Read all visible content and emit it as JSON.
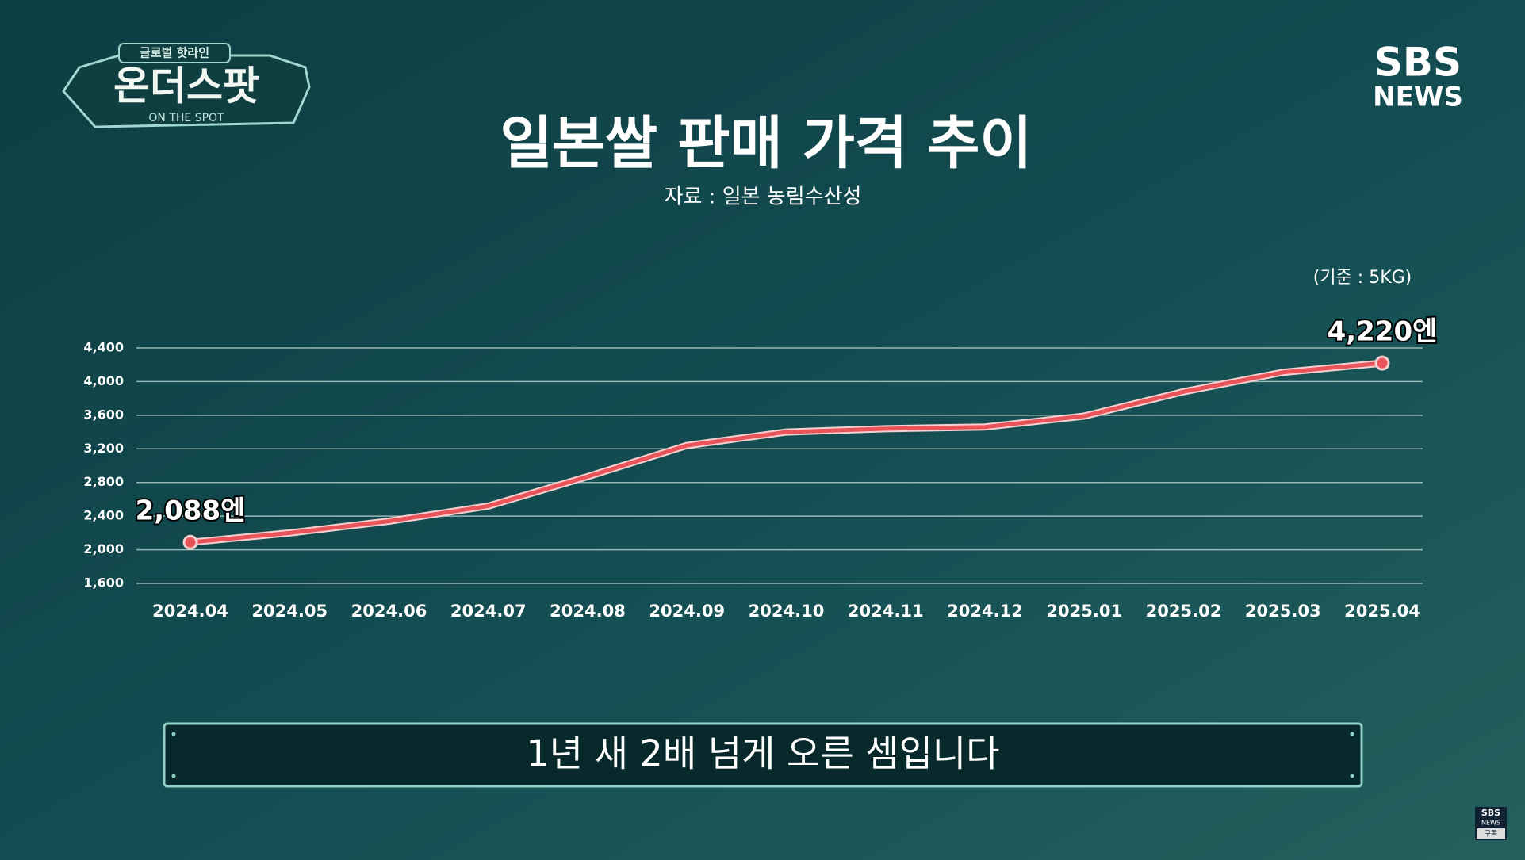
{
  "logo": {
    "top": "글로벌 핫라인",
    "name": "온더스팟",
    "sub": "ON THE SPOT"
  },
  "brand": {
    "line1": "SBS",
    "line2": "NEWS"
  },
  "caption": "1년 새 2배 넘게 오른 셈입니다",
  "corner": {
    "line1": "SBS",
    "line2": "NEWS",
    "line3": "구독"
  },
  "chart_data": {
    "type": "line",
    "title": "일본쌀 판매 가격 추이",
    "subtitle": "자료 : 일본 농림수산성",
    "unit_note": "(기준 : 5KG)",
    "categories": [
      "2024.04",
      "2024.05",
      "2024.06",
      "2024.07",
      "2024.08",
      "2024.09",
      "2024.10",
      "2024.11",
      "2024.12",
      "2025.01",
      "2025.02",
      "2025.03",
      "2025.04"
    ],
    "series": [
      {
        "name": "일본쌀 판매 가격",
        "color": "#e8545a",
        "values": [
          2088,
          2200,
          2340,
          2520,
          2870,
          3240,
          3400,
          3440,
          3460,
          3590,
          3880,
          4110,
          4220
        ],
        "value_labels": [
          "2,088엔",
          null,
          null,
          null,
          null,
          null,
          null,
          null,
          null,
          null,
          null,
          null,
          "4,220엔"
        ]
      }
    ],
    "ylim": [
      1600,
      4400
    ],
    "yticks": [
      {
        "value": 1600,
        "label": "1,600"
      },
      {
        "value": 2000,
        "label": "2,000"
      },
      {
        "value": 2400,
        "label": "2,400"
      },
      {
        "value": 2800,
        "label": "2,800"
      },
      {
        "value": 3200,
        "label": "3,200"
      },
      {
        "value": 3600,
        "label": "3,600"
      },
      {
        "value": 4000,
        "label": "4,000"
      },
      {
        "value": 4400,
        "label": "4,400"
      }
    ],
    "grid": true
  }
}
